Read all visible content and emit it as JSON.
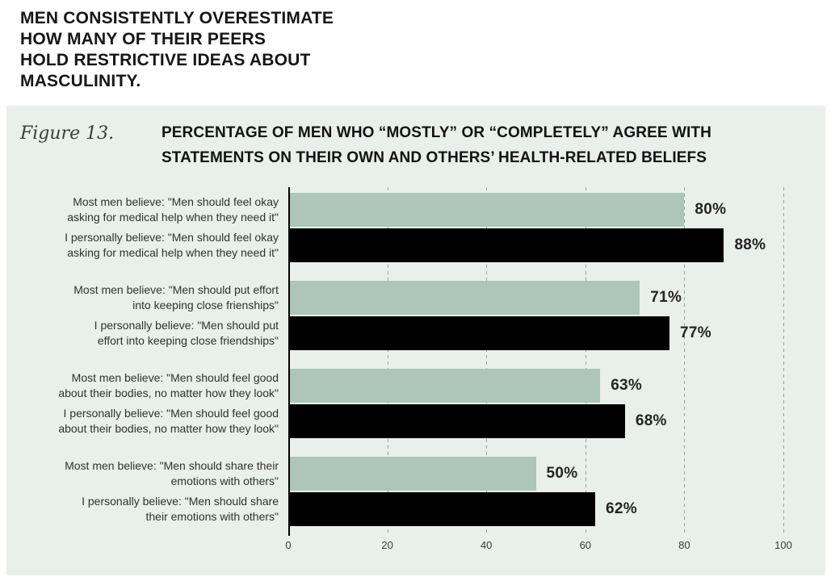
{
  "headline": "MEN CONSISTENTLY OVERESTIMATE\nHOW MANY OF THEIR PEERS\nHOLD RESTRICTIVE IDEAS ABOUT\nMASCULINITY.",
  "figure": {
    "label": "Figure 13.",
    "background": "#e9efeb"
  },
  "chart_data": {
    "type": "bar",
    "orientation": "horizontal",
    "title": "PERCENTAGE OF MEN WHO “MOSTLY” OR “COMPLETELY” AGREE WITH\nSTATEMENTS ON THEIR OWN AND OTHERS’ HEALTH-RELATED BELIEFS",
    "xlim": [
      0,
      100
    ],
    "x_ticks": [
      0,
      20,
      40,
      60,
      80,
      100
    ],
    "grid": "dashed-vertical",
    "legend": "none",
    "colors": {
      "gridline": "#98a39d",
      "axis": "#000000"
    },
    "series": [
      {
        "id": "most_men_believe",
        "name": "Most men believe",
        "color": "#aec5ba"
      },
      {
        "id": "i_personally_believe",
        "name": "I personally believe",
        "color": "#000000"
      }
    ],
    "groups": [
      {
        "bars": [
          {
            "series": "most_men_believe",
            "label": "Most men believe: \"Men should feel okay\nasking for medical help when they need it\"",
            "value": 80,
            "value_label": "80%"
          },
          {
            "series": "i_personally_believe",
            "label": "I personally believe: \"Men should feel okay\nasking for medical help when they need it\"",
            "value": 88,
            "value_label": "88%"
          }
        ]
      },
      {
        "bars": [
          {
            "series": "most_men_believe",
            "label": "Most men believe: \"Men should put effort\ninto keeping close frienships\"",
            "value": 71,
            "value_label": "71%"
          },
          {
            "series": "i_personally_believe",
            "label": "I personally believe: \"Men should put\neffort into keeping close friendships\"",
            "value": 77,
            "value_label": "77%"
          }
        ]
      },
      {
        "bars": [
          {
            "series": "most_men_believe",
            "label": "Most men believe: \"Men should feel good\nabout their bodies, no matter how they look\"",
            "value": 63,
            "value_label": "63%"
          },
          {
            "series": "i_personally_believe",
            "label": "I personally believe: \"Men should feel good\nabout their bodies, no matter how they look\"",
            "value": 68,
            "value_label": "68%"
          }
        ]
      },
      {
        "bars": [
          {
            "series": "most_men_believe",
            "label": "Most men believe: \"Men should share their\nemotions with others\"",
            "value": 50,
            "value_label": "50%"
          },
          {
            "series": "i_personally_believe",
            "label": "I personally believe: \"Men should share\ntheir emotions with others\"",
            "value": 62,
            "value_label": "62%"
          }
        ]
      }
    ]
  }
}
